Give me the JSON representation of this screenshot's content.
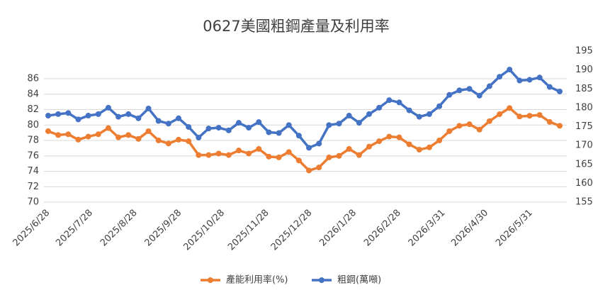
{
  "chart_data": {
    "type": "line",
    "title": "0627美國粗鋼產量及利用率",
    "x": [
      "2025/6/28",
      "2025/7/5",
      "2025/7/12",
      "2025/7/19",
      "2025/7/26",
      "2025/8/2",
      "2025/8/9",
      "2025/8/16",
      "2025/8/23",
      "2025/8/30",
      "2025/9/6",
      "2025/9/13",
      "2025/9/20",
      "2025/9/27",
      "2025/10/4",
      "2025/10/11",
      "2025/10/18",
      "2025/10/25",
      "2025/11/1",
      "2025/11/8",
      "2025/11/15",
      "2025/11/22",
      "2025/11/29",
      "2025/12/6",
      "2025/12/13",
      "2025/12/20",
      "2025/12/27",
      "2026/1/3",
      "2026/1/10",
      "2026/1/17",
      "2026/1/24",
      "2026/1/31",
      "2026/2/7",
      "2026/2/14",
      "2026/2/21",
      "2026/2/28",
      "2026/3/7",
      "2026/3/14",
      "2026/3/21",
      "2026/3/28",
      "2026/4/4",
      "2026/4/11",
      "2026/4/18",
      "2026/4/25",
      "2026/5/2",
      "2026/5/9",
      "2026/5/16",
      "2026/5/23",
      "2026/5/30",
      "2026/6/6",
      "2026/6/13",
      "2026/6/20"
    ],
    "series": [
      {
        "name": "產能利用率(%)",
        "color": "#ed7d31",
        "axis": "y",
        "values": [
          79.2,
          78.7,
          78.8,
          78.1,
          78.5,
          78.8,
          79.6,
          78.4,
          78.7,
          78.2,
          79.2,
          78.0,
          77.6,
          78.1,
          77.9,
          76.1,
          76.1,
          76.3,
          76.1,
          76.7,
          76.3,
          76.9,
          75.9,
          75.8,
          76.5,
          75.4,
          74.1,
          74.5,
          75.8,
          76.0,
          76.9,
          76.1,
          77.2,
          77.9,
          78.5,
          78.4,
          77.5,
          76.8,
          77.1,
          78.0,
          79.2,
          79.9,
          80.1,
          79.4,
          80.5,
          81.4,
          82.2,
          81.1,
          81.2,
          81.3,
          80.4,
          79.9
        ]
      },
      {
        "name": "粗鋼(萬噸)",
        "color": "#4472c4",
        "axis": "y2",
        "values": [
          177.9,
          178.3,
          178.6,
          176.9,
          177.9,
          178.3,
          180.0,
          177.6,
          178.3,
          177.2,
          179.8,
          176.5,
          175.8,
          177.2,
          174.9,
          172.1,
          174.5,
          174.7,
          174.0,
          176.0,
          174.7,
          176.2,
          173.5,
          173.3,
          175.4,
          172.6,
          169.4,
          170.5,
          175.4,
          175.8,
          177.9,
          176.0,
          178.3,
          180.0,
          182.0,
          181.4,
          179.3,
          177.6,
          178.3,
          180.4,
          183.4,
          184.6,
          185.0,
          183.2,
          185.7,
          188.2,
          190.1,
          187.2,
          187.4,
          188.0,
          185.5,
          184.3
        ]
      }
    ],
    "xlim": [
      "2025/6/28",
      "2026/6/20"
    ],
    "xticks": [
      "2025/6/28",
      "2025/7/28",
      "2025/8/28",
      "2025/9/28",
      "2025/10/28",
      "2025/11/28",
      "2025/12/28",
      "2026/1/28",
      "2026/2/28",
      "2026/3/31",
      "2026/4/30",
      "2026/5/31"
    ],
    "ylim": [
      70,
      86
    ],
    "yticks": [
      70,
      72,
      74,
      76,
      78,
      80,
      82,
      84,
      86
    ],
    "y2lim": [
      155,
      195
    ],
    "y2ticks": [
      155,
      160,
      165,
      170,
      175,
      180,
      185,
      190,
      195
    ],
    "grid": true,
    "legend": "bottom"
  }
}
